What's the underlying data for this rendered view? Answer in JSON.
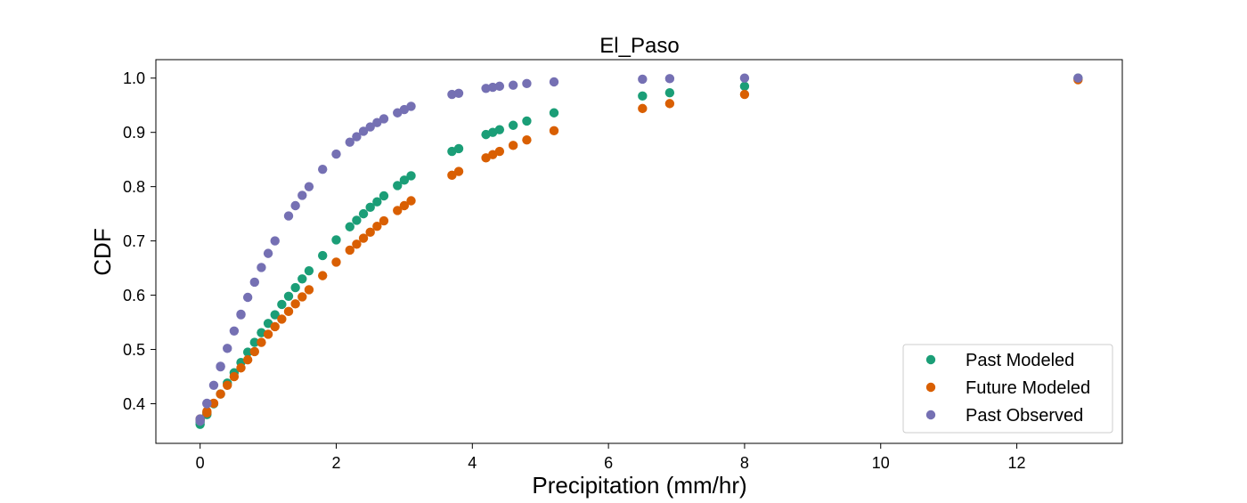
{
  "chart_data": {
    "type": "scatter",
    "title": "El_Paso",
    "xlabel": "Precipitation (mm/hr)",
    "ylabel": "CDF",
    "xlim": [
      -0.65,
      13.55
    ],
    "ylim": [
      0.327,
      1.034
    ],
    "xticks": [
      0,
      2,
      4,
      6,
      8,
      10,
      12
    ],
    "yticks": [
      0.4,
      0.5,
      0.6,
      0.7,
      0.8,
      0.9,
      1.0
    ],
    "xtick_labels": [
      "0",
      "2",
      "4",
      "6",
      "8",
      "10",
      "12"
    ],
    "ytick_labels": [
      "0.4",
      "0.5",
      "0.6",
      "0.7",
      "0.8",
      "0.9",
      "1.0"
    ],
    "grid": false,
    "legend_position": "lower-right",
    "series": [
      {
        "name": "Past Modeled",
        "color": "#1b9e77",
        "x": [
          0,
          0,
          0,
          0.1,
          0.1,
          0.2,
          0.3,
          0.4,
          0.5,
          0.6,
          0.7,
          0.8,
          0.9,
          1.0,
          1.1,
          1.2,
          1.3,
          1.4,
          1.5,
          1.6,
          1.8,
          2.0,
          2.2,
          2.3,
          2.4,
          2.5,
          2.6,
          2.7,
          2.9,
          3.0,
          3.1,
          3.7,
          3.8,
          4.2,
          4.3,
          4.4,
          4.6,
          4.8,
          5.2,
          6.5,
          6.9,
          8.0,
          12.9
        ],
        "y": [
          0.362,
          0.366,
          0.37,
          0.38,
          0.383,
          0.4,
          0.418,
          0.438,
          0.457,
          0.476,
          0.495,
          0.513,
          0.531,
          0.548,
          0.564,
          0.583,
          0.598,
          0.614,
          0.63,
          0.645,
          0.673,
          0.702,
          0.726,
          0.738,
          0.75,
          0.762,
          0.772,
          0.783,
          0.802,
          0.812,
          0.82,
          0.865,
          0.87,
          0.896,
          0.9,
          0.905,
          0.913,
          0.921,
          0.936,
          0.967,
          0.973,
          0.985,
          1.0
        ]
      },
      {
        "name": "Future Modeled",
        "color": "#d95f02",
        "x": [
          0,
          0,
          0.1,
          0.1,
          0.2,
          0.3,
          0.4,
          0.5,
          0.6,
          0.7,
          0.8,
          0.9,
          1.0,
          1.1,
          1.2,
          1.3,
          1.4,
          1.5,
          1.6,
          1.8,
          2.0,
          2.2,
          2.3,
          2.4,
          2.5,
          2.6,
          2.7,
          2.9,
          3.0,
          3.1,
          3.7,
          3.8,
          4.2,
          4.3,
          4.4,
          4.6,
          4.8,
          5.2,
          6.5,
          6.9,
          8.0,
          12.9
        ],
        "y": [
          0.37,
          0.372,
          0.383,
          0.386,
          0.401,
          0.418,
          0.434,
          0.45,
          0.466,
          0.481,
          0.496,
          0.513,
          0.528,
          0.542,
          0.556,
          0.57,
          0.584,
          0.597,
          0.61,
          0.636,
          0.661,
          0.683,
          0.694,
          0.705,
          0.716,
          0.727,
          0.737,
          0.756,
          0.765,
          0.774,
          0.821,
          0.828,
          0.853,
          0.859,
          0.865,
          0.876,
          0.886,
          0.903,
          0.944,
          0.953,
          0.97,
          0.997
        ]
      },
      {
        "name": "Past Observed",
        "color": "#7570b3",
        "x": [
          0,
          0,
          0.1,
          0.1,
          0.2,
          0.3,
          0.3,
          0.4,
          0.5,
          0.6,
          0.6,
          0.7,
          0.8,
          0.9,
          1.0,
          1.1,
          1.3,
          1.4,
          1.5,
          1.6,
          1.8,
          2.0,
          2.2,
          2.3,
          2.4,
          2.5,
          2.6,
          2.7,
          2.9,
          3.0,
          3.1,
          3.7,
          3.8,
          4.2,
          4.3,
          4.4,
          4.6,
          4.8,
          5.2,
          6.5,
          6.9,
          8.0,
          12.9
        ],
        "y": [
          0.368,
          0.372,
          0.4,
          0.401,
          0.434,
          0.468,
          0.469,
          0.502,
          0.534,
          0.564,
          0.565,
          0.596,
          0.624,
          0.651,
          0.677,
          0.7,
          0.746,
          0.765,
          0.784,
          0.8,
          0.832,
          0.86,
          0.882,
          0.892,
          0.902,
          0.91,
          0.918,
          0.925,
          0.936,
          0.942,
          0.948,
          0.97,
          0.972,
          0.981,
          0.983,
          0.985,
          0.987,
          0.99,
          0.993,
          0.998,
          0.999,
          1.0,
          1.0
        ]
      }
    ]
  }
}
